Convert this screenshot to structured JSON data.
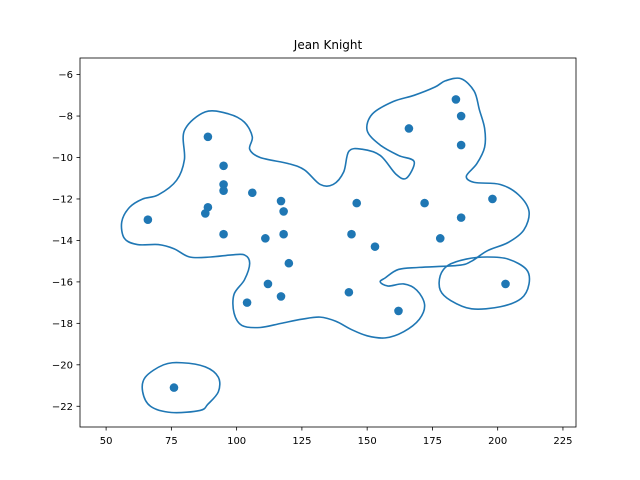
{
  "chart_data": {
    "type": "scatter",
    "title": "Jean Knight",
    "xlabel": "",
    "ylabel": "",
    "xlim": [
      40,
      230
    ],
    "ylim": [
      -23,
      -5.2
    ],
    "xticks": [
      50,
      75,
      100,
      125,
      150,
      175,
      200,
      225
    ],
    "yticks": [
      -22,
      -20,
      -18,
      -16,
      -14,
      -12,
      -10,
      -8,
      -6
    ],
    "grid": false,
    "series": [
      {
        "color": "#1f77b4",
        "points": [
          {
            "x": 76,
            "y": -21.1
          },
          {
            "x": 66,
            "y": -13.0
          },
          {
            "x": 88,
            "y": -12.7
          },
          {
            "x": 89,
            "y": -12.4
          },
          {
            "x": 89,
            "y": -9.0
          },
          {
            "x": 95,
            "y": -10.4
          },
          {
            "x": 95,
            "y": -11.3
          },
          {
            "x": 95,
            "y": -11.6
          },
          {
            "x": 95,
            "y": -13.7
          },
          {
            "x": 104,
            "y": -17.0
          },
          {
            "x": 106,
            "y": -11.7
          },
          {
            "x": 111,
            "y": -13.9
          },
          {
            "x": 112,
            "y": -16.1
          },
          {
            "x": 117,
            "y": -12.1
          },
          {
            "x": 117,
            "y": -16.7
          },
          {
            "x": 118,
            "y": -12.6
          },
          {
            "x": 118,
            "y": -13.7
          },
          {
            "x": 120,
            "y": -15.1
          },
          {
            "x": 143,
            "y": -16.5
          },
          {
            "x": 144,
            "y": -13.7
          },
          {
            "x": 146,
            "y": -12.2
          },
          {
            "x": 153,
            "y": -14.3
          },
          {
            "x": 162,
            "y": -17.4
          },
          {
            "x": 166,
            "y": -8.6
          },
          {
            "x": 172,
            "y": -12.2
          },
          {
            "x": 178,
            "y": -13.9
          },
          {
            "x": 184,
            "y": -7.2
          },
          {
            "x": 186,
            "y": -8.0
          },
          {
            "x": 186,
            "y": -9.4
          },
          {
            "x": 186,
            "y": -12.9
          },
          {
            "x": 198,
            "y": -12.0
          },
          {
            "x": 203,
            "y": -16.1
          }
        ]
      }
    ],
    "contours": [
      {
        "color": "#1f77b4",
        "path": [
          [
            86,
            -22.2
          ],
          [
            75,
            -22.3
          ],
          [
            67,
            -22.0
          ],
          [
            64,
            -21.3
          ],
          [
            65,
            -20.6
          ],
          [
            72,
            -20.0
          ],
          [
            79,
            -19.9
          ],
          [
            88,
            -20.1
          ],
          [
            93,
            -20.6
          ],
          [
            93,
            -21.3
          ],
          [
            89,
            -21.9
          ]
        ]
      },
      {
        "color": "#1f77b4",
        "path": [
          [
            70,
            -11.8
          ],
          [
            77,
            -11.1
          ],
          [
            80,
            -10.1
          ],
          [
            80,
            -8.7
          ],
          [
            88,
            -7.8
          ],
          [
            97,
            -7.9
          ],
          [
            103,
            -8.3
          ],
          [
            106,
            -9.0
          ],
          [
            105,
            -9.6
          ],
          [
            109,
            -10.0
          ],
          [
            120,
            -10.3
          ],
          [
            126,
            -10.6
          ],
          [
            132,
            -11.3
          ],
          [
            137,
            -11.3
          ],
          [
            141,
            -10.7
          ],
          [
            143,
            -9.7
          ],
          [
            148,
            -9.6
          ],
          [
            155,
            -9.9
          ],
          [
            161,
            -10.8
          ],
          [
            165,
            -11.0
          ],
          [
            168,
            -10.2
          ],
          [
            162,
            -9.9
          ],
          [
            155,
            -9.4
          ],
          [
            150,
            -8.7
          ],
          [
            152,
            -7.9
          ],
          [
            160,
            -7.3
          ],
          [
            168,
            -7.0
          ],
          [
            176,
            -6.6
          ],
          [
            180,
            -6.3
          ],
          [
            186,
            -6.2
          ],
          [
            191,
            -6.8
          ],
          [
            193,
            -7.7
          ],
          [
            195,
            -8.6
          ],
          [
            195,
            -9.5
          ],
          [
            192,
            -10.3
          ],
          [
            188,
            -10.9
          ],
          [
            191,
            -11.2
          ],
          [
            201,
            -11.3
          ],
          [
            208,
            -11.8
          ],
          [
            212,
            -12.6
          ],
          [
            210,
            -13.5
          ],
          [
            204,
            -14.1
          ],
          [
            196,
            -14.5
          ],
          [
            190,
            -15.0
          ],
          [
            185,
            -15.2
          ],
          [
            170,
            -15.3
          ],
          [
            162,
            -15.4
          ],
          [
            157,
            -15.8
          ],
          [
            155,
            -16.0
          ],
          [
            158,
            -16.2
          ],
          [
            164,
            -16.1
          ],
          [
            169,
            -16.4
          ],
          [
            172,
            -17.1
          ],
          [
            170,
            -17.8
          ],
          [
            164,
            -18.4
          ],
          [
            157,
            -18.7
          ],
          [
            150,
            -18.6
          ],
          [
            144,
            -18.3
          ],
          [
            138,
            -17.9
          ],
          [
            132,
            -17.7
          ],
          [
            125,
            -17.8
          ],
          [
            117,
            -18.0
          ],
          [
            109,
            -18.2
          ],
          [
            102,
            -18.1
          ],
          [
            99,
            -17.5
          ],
          [
            99,
            -16.6
          ],
          [
            103,
            -15.9
          ],
          [
            105,
            -15.1
          ],
          [
            103,
            -14.7
          ],
          [
            98,
            -14.7
          ],
          [
            90,
            -14.8
          ],
          [
            82,
            -14.8
          ],
          [
            76,
            -14.4
          ],
          [
            70,
            -14.2
          ],
          [
            62,
            -14.2
          ],
          [
            57,
            -13.9
          ],
          [
            56,
            -13.1
          ],
          [
            59,
            -12.4
          ],
          [
            64,
            -12.0
          ]
        ]
      },
      {
        "color": "#1f77b4",
        "path": [
          [
            201,
            -17.2
          ],
          [
            190,
            -17.3
          ],
          [
            182,
            -16.9
          ],
          [
            178,
            -16.4
          ],
          [
            178,
            -15.7
          ],
          [
            181,
            -15.2
          ],
          [
            188,
            -14.9
          ],
          [
            196,
            -14.8
          ],
          [
            204,
            -14.9
          ],
          [
            211,
            -15.4
          ],
          [
            212,
            -16.1
          ],
          [
            209,
            -16.8
          ]
        ]
      }
    ]
  }
}
